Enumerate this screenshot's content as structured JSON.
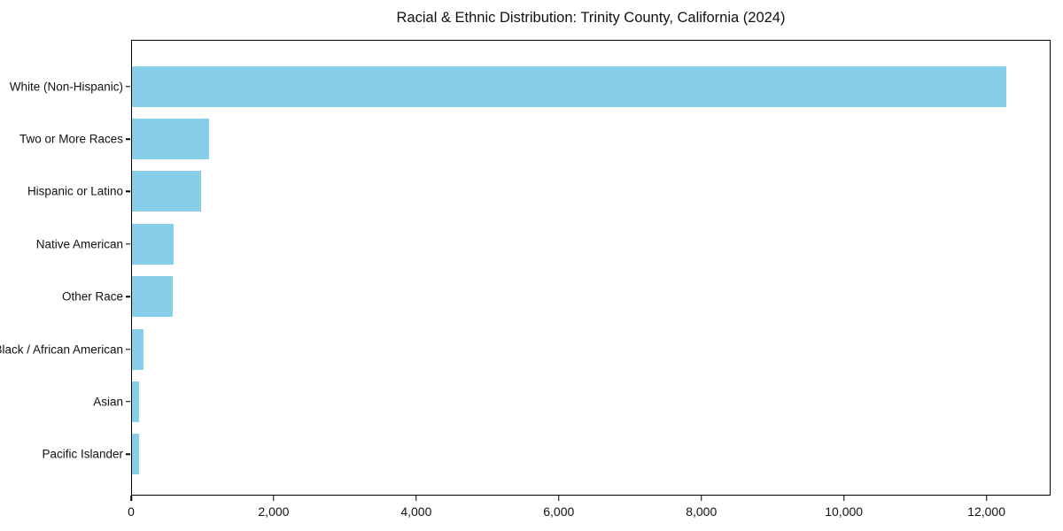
{
  "chart_data": {
    "type": "bar",
    "orientation": "horizontal",
    "title": "Racial & Ethnic Distribution: Trinity County, California (2024)",
    "categories": [
      "White (Non-Hispanic)",
      "Two or More Races",
      "Hispanic or Latino",
      "Native American",
      "Other Race",
      "Black / African American",
      "Asian",
      "Pacific Islander"
    ],
    "values": [
      12285,
      1085,
      970,
      585,
      570,
      165,
      105,
      100
    ],
    "xlabel": "",
    "ylabel": "",
    "xlim": [
      0,
      12900
    ],
    "xticks": [
      0,
      2000,
      4000,
      6000,
      8000,
      10000,
      12000
    ],
    "xtick_labels": [
      "0",
      "2,000",
      "4,000",
      "6,000",
      "8,000",
      "10,000",
      "12,000"
    ],
    "bar_color": "#87CEEB",
    "frame_color": "#000000",
    "background_color": "#ffffff",
    "grid": false,
    "legend": null
  }
}
